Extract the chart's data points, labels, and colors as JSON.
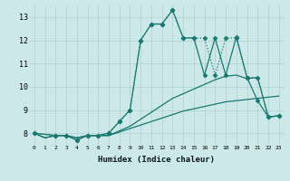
{
  "xlabel": "Humidex (Indice chaleur)",
  "bg_color": "#cce8e8",
  "grid_color": "#b0d0d0",
  "line_color": "#1a7870",
  "xlim": [
    -0.5,
    23.5
  ],
  "ylim": [
    7.5,
    13.5
  ],
  "xticks": [
    0,
    1,
    2,
    3,
    4,
    5,
    6,
    7,
    8,
    9,
    10,
    11,
    12,
    13,
    14,
    15,
    16,
    17,
    18,
    19,
    20,
    21,
    22,
    23
  ],
  "yticks": [
    8,
    9,
    10,
    11,
    12,
    13
  ],
  "lines": [
    {
      "x": [
        0,
        1,
        2,
        3,
        4,
        5,
        6,
        7,
        8,
        9,
        10,
        11,
        12,
        13,
        14,
        15,
        16,
        17,
        18,
        19,
        20,
        21,
        22,
        23
      ],
      "y": [
        8.0,
        7.8,
        7.9,
        7.9,
        7.8,
        7.9,
        7.9,
        7.9,
        8.05,
        8.2,
        8.35,
        8.5,
        8.65,
        8.8,
        8.95,
        9.05,
        9.15,
        9.25,
        9.35,
        9.4,
        9.45,
        9.5,
        9.55,
        9.6
      ],
      "style": "-",
      "marker": null,
      "lw": 0.9
    },
    {
      "x": [
        0,
        1,
        2,
        3,
        4,
        5,
        6,
        7,
        8,
        9,
        10,
        11,
        12,
        13,
        14,
        15,
        16,
        17,
        18,
        19,
        20,
        21,
        22,
        23
      ],
      "y": [
        8.0,
        7.8,
        7.9,
        7.9,
        7.8,
        7.9,
        7.9,
        7.9,
        8.1,
        8.3,
        8.6,
        8.9,
        9.2,
        9.5,
        9.7,
        9.9,
        10.1,
        10.3,
        10.45,
        10.5,
        10.35,
        10.4,
        8.7,
        8.75
      ],
      "style": "-",
      "marker": null,
      "lw": 0.9
    },
    {
      "x": [
        0,
        2,
        3,
        4,
        5,
        6,
        7,
        8,
        9,
        10,
        11,
        12,
        13,
        14,
        15,
        16,
        17,
        18,
        19,
        20,
        21,
        22,
        23
      ],
      "y": [
        8.0,
        7.9,
        7.9,
        7.7,
        7.9,
        7.9,
        8.0,
        8.5,
        9.0,
        12.0,
        12.7,
        12.7,
        13.3,
        12.1,
        12.1,
        12.1,
        10.5,
        12.1,
        12.1,
        10.4,
        10.4,
        8.7,
        8.75
      ],
      "style": "dotted",
      "marker": "D",
      "markersize": 2.5,
      "lw": 0.9
    },
    {
      "x": [
        0,
        2,
        3,
        4,
        5,
        6,
        7,
        8,
        9,
        10,
        11,
        12,
        13,
        14,
        15,
        16,
        17,
        18,
        19,
        20,
        21,
        22,
        23
      ],
      "y": [
        8.0,
        7.9,
        7.9,
        7.7,
        7.9,
        7.9,
        8.0,
        8.5,
        9.0,
        12.0,
        12.7,
        12.7,
        13.3,
        12.1,
        12.1,
        10.5,
        12.1,
        10.5,
        12.15,
        10.4,
        9.4,
        8.7,
        8.75
      ],
      "style": "-",
      "marker": "D",
      "markersize": 2.5,
      "lw": 0.9
    }
  ]
}
